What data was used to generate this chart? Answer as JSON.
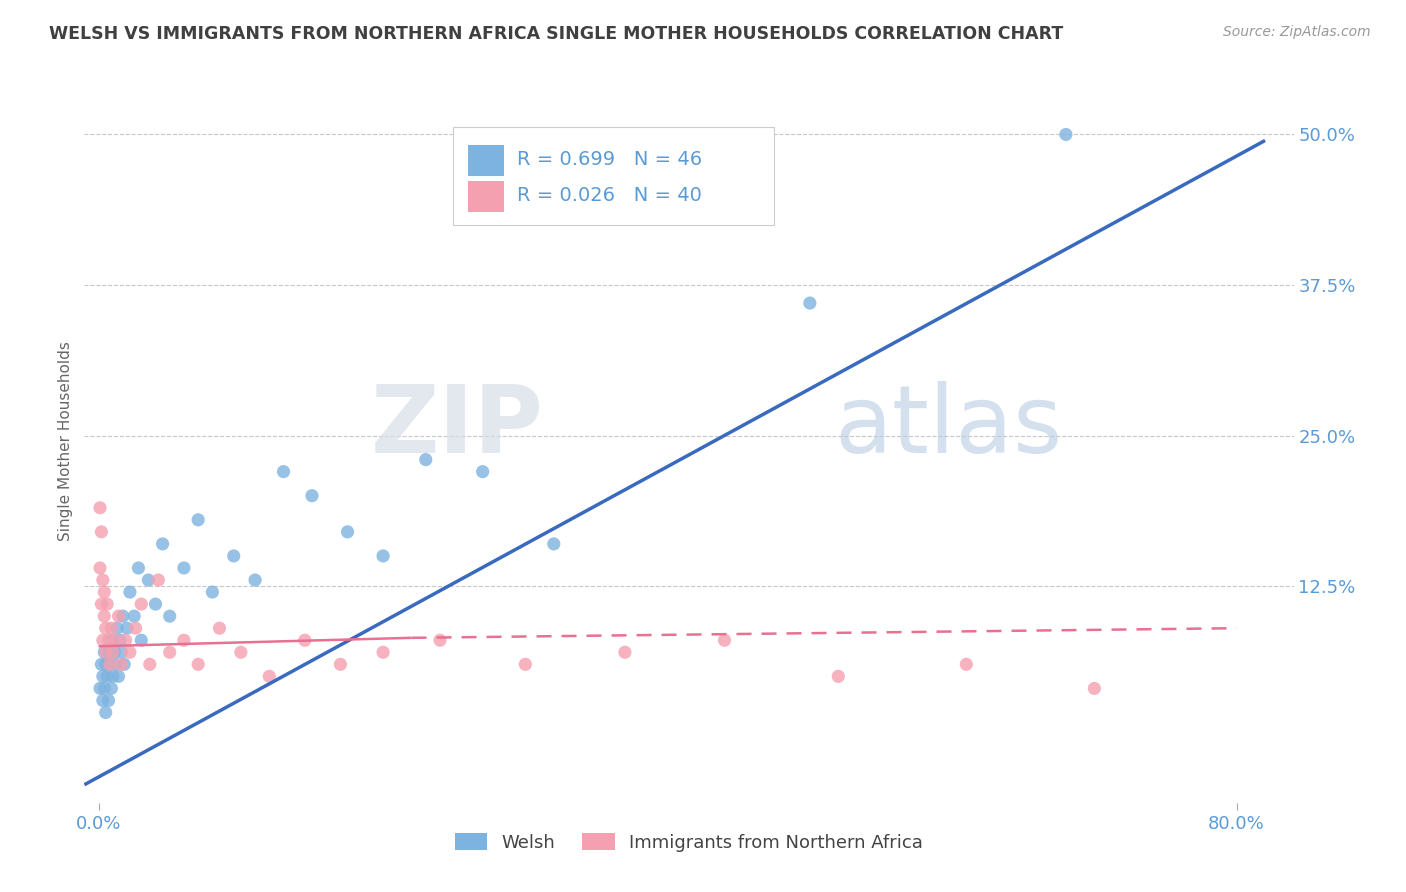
{
  "title": "WELSH VS IMMIGRANTS FROM NORTHERN AFRICA SINGLE MOTHER HOUSEHOLDS CORRELATION CHART",
  "source": "Source: ZipAtlas.com",
  "ylabel": "Single Mother Households",
  "ytick_labels": [
    "12.5%",
    "25.0%",
    "37.5%",
    "50.0%"
  ],
  "ytick_values": [
    0.125,
    0.25,
    0.375,
    0.5
  ],
  "xtick_labels": [
    "0.0%",
    "80.0%"
  ],
  "xtick_values": [
    0.0,
    0.8
  ],
  "xlim": [
    -0.01,
    0.84
  ],
  "ylim": [
    -0.055,
    0.545
  ],
  "legend_entry1": "R = 0.699   N = 46",
  "legend_entry2": "R = 0.026   N = 40",
  "legend_label1": "Welsh",
  "legend_label2": "Immigrants from Northern Africa",
  "color_welsh": "#7db3e0",
  "color_immig": "#f4a0b0",
  "color_welsh_line": "#3a6abf",
  "color_immig_line": "#e87090",
  "color_title": "#404040",
  "color_axis_labels": "#5b9bd5",
  "color_grid": "#c8c8c8",
  "watermark_zip": "ZIP",
  "watermark_atlas": "atlas",
  "welsh_x": [
    0.001,
    0.002,
    0.003,
    0.003,
    0.004,
    0.004,
    0.005,
    0.005,
    0.006,
    0.007,
    0.007,
    0.008,
    0.009,
    0.009,
    0.01,
    0.011,
    0.012,
    0.013,
    0.014,
    0.015,
    0.016,
    0.017,
    0.018,
    0.02,
    0.022,
    0.025,
    0.028,
    0.03,
    0.035,
    0.04,
    0.045,
    0.05,
    0.06,
    0.07,
    0.08,
    0.095,
    0.11,
    0.13,
    0.15,
    0.175,
    0.2,
    0.23,
    0.27,
    0.32,
    0.5,
    0.68
  ],
  "welsh_y": [
    0.04,
    0.06,
    0.03,
    0.05,
    0.07,
    0.04,
    0.06,
    0.02,
    0.05,
    0.07,
    0.03,
    0.06,
    0.04,
    0.08,
    0.05,
    0.07,
    0.06,
    0.09,
    0.05,
    0.08,
    0.07,
    0.1,
    0.06,
    0.09,
    0.12,
    0.1,
    0.14,
    0.08,
    0.13,
    0.11,
    0.16,
    0.1,
    0.14,
    0.18,
    0.12,
    0.15,
    0.13,
    0.22,
    0.2,
    0.17,
    0.15,
    0.23,
    0.22,
    0.16,
    0.36,
    0.5
  ],
  "immig_x": [
    0.001,
    0.001,
    0.002,
    0.002,
    0.003,
    0.003,
    0.004,
    0.004,
    0.005,
    0.005,
    0.006,
    0.007,
    0.008,
    0.009,
    0.01,
    0.012,
    0.014,
    0.016,
    0.019,
    0.022,
    0.026,
    0.03,
    0.036,
    0.042,
    0.05,
    0.06,
    0.07,
    0.085,
    0.1,
    0.12,
    0.145,
    0.17,
    0.2,
    0.24,
    0.3,
    0.37,
    0.44,
    0.52,
    0.61,
    0.7
  ],
  "immig_y": [
    0.19,
    0.14,
    0.17,
    0.11,
    0.13,
    0.08,
    0.1,
    0.12,
    0.07,
    0.09,
    0.11,
    0.08,
    0.06,
    0.09,
    0.07,
    0.08,
    0.1,
    0.06,
    0.08,
    0.07,
    0.09,
    0.11,
    0.06,
    0.13,
    0.07,
    0.08,
    0.06,
    0.09,
    0.07,
    0.05,
    0.08,
    0.06,
    0.07,
    0.08,
    0.06,
    0.07,
    0.08,
    0.05,
    0.06,
    0.04
  ],
  "welsh_line_x": [
    -0.01,
    0.82
  ],
  "welsh_line_y": [
    -0.04,
    0.495
  ],
  "immig_line_x": [
    0.0,
    0.8
  ],
  "immig_line_y": [
    0.075,
    0.09
  ]
}
